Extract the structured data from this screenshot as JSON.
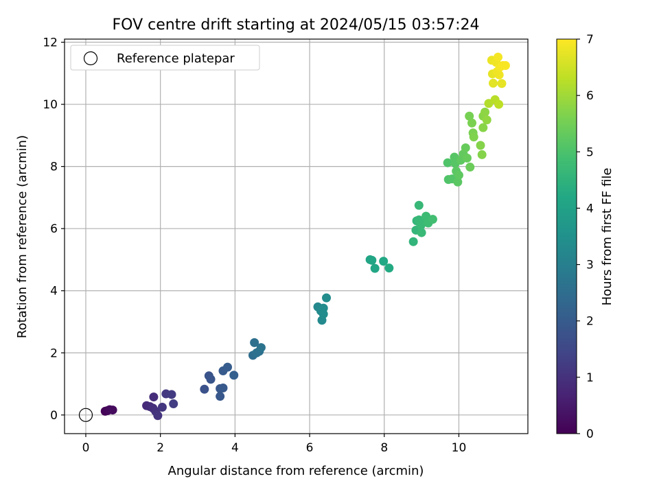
{
  "chart_data": {
    "type": "scatter",
    "title": "FOV centre drift starting at 2024/05/15 03:57:24",
    "xlabel": "Angular distance from reference (arcmin)",
    "ylabel": "Rotation from reference (arcmin)",
    "xlim": [
      -0.57,
      11.85
    ],
    "ylim": [
      -0.6,
      12.1
    ],
    "xticks": [
      0,
      2,
      4,
      6,
      8,
      10
    ],
    "yticks": [
      0,
      2,
      4,
      6,
      8,
      10,
      12
    ],
    "grid": true,
    "legend": {
      "placement": "upper-left",
      "entries": [
        "Reference platepar"
      ]
    },
    "reference_point": {
      "x": 0,
      "y": 0,
      "label": "Reference platepar"
    },
    "colorbar": {
      "label": "Hours from first FF file",
      "range": [
        0,
        7
      ],
      "ticks": [
        0,
        1,
        2,
        3,
        4,
        5,
        6,
        7
      ],
      "colormap": "viridis"
    },
    "points": [
      {
        "x": 0.52,
        "y": 0.12,
        "h": 0.05
      },
      {
        "x": 0.58,
        "y": 0.14,
        "h": 0.1
      },
      {
        "x": 0.64,
        "y": 0.17,
        "h": 0.15
      },
      {
        "x": 0.72,
        "y": 0.16,
        "h": 0.2
      },
      {
        "x": 1.63,
        "y": 0.3,
        "h": 0.85
      },
      {
        "x": 1.72,
        "y": 0.27,
        "h": 0.9
      },
      {
        "x": 1.8,
        "y": 0.22,
        "h": 0.95
      },
      {
        "x": 1.82,
        "y": 0.58,
        "h": 0.9
      },
      {
        "x": 1.87,
        "y": 0.12,
        "h": 1.0
      },
      {
        "x": 1.93,
        "y": -0.02,
        "h": 1.05
      },
      {
        "x": 2.05,
        "y": 0.25,
        "h": 1.1
      },
      {
        "x": 2.15,
        "y": 0.68,
        "h": 1.15
      },
      {
        "x": 2.3,
        "y": 0.66,
        "h": 1.2
      },
      {
        "x": 2.35,
        "y": 0.36,
        "h": 1.25
      },
      {
        "x": 3.18,
        "y": 0.83,
        "h": 1.75
      },
      {
        "x": 3.3,
        "y": 1.26,
        "h": 1.8
      },
      {
        "x": 3.35,
        "y": 1.15,
        "h": 1.85
      },
      {
        "x": 3.6,
        "y": 0.85,
        "h": 1.9
      },
      {
        "x": 3.6,
        "y": 0.6,
        "h": 1.9
      },
      {
        "x": 3.68,
        "y": 0.87,
        "h": 1.95
      },
      {
        "x": 3.68,
        "y": 1.42,
        "h": 2.0
      },
      {
        "x": 3.8,
        "y": 1.54,
        "h": 2.05
      },
      {
        "x": 3.97,
        "y": 1.28,
        "h": 2.1
      },
      {
        "x": 4.48,
        "y": 1.92,
        "h": 2.5
      },
      {
        "x": 4.52,
        "y": 2.33,
        "h": 2.55
      },
      {
        "x": 4.58,
        "y": 2.0,
        "h": 2.6
      },
      {
        "x": 4.65,
        "y": 2.05,
        "h": 2.6
      },
      {
        "x": 4.7,
        "y": 2.17,
        "h": 2.65
      },
      {
        "x": 6.22,
        "y": 3.48,
        "h": 3.25
      },
      {
        "x": 6.3,
        "y": 3.35,
        "h": 3.3
      },
      {
        "x": 6.33,
        "y": 3.05,
        "h": 3.3
      },
      {
        "x": 6.37,
        "y": 3.44,
        "h": 3.35
      },
      {
        "x": 6.37,
        "y": 3.25,
        "h": 3.35
      },
      {
        "x": 6.45,
        "y": 3.77,
        "h": 3.4
      },
      {
        "x": 7.62,
        "y": 5.0,
        "h": 4.1
      },
      {
        "x": 7.67,
        "y": 4.98,
        "h": 4.1
      },
      {
        "x": 7.75,
        "y": 4.72,
        "h": 4.15
      },
      {
        "x": 7.98,
        "y": 4.95,
        "h": 4.2
      },
      {
        "x": 8.13,
        "y": 4.73,
        "h": 4.25
      },
      {
        "x": 8.78,
        "y": 5.58,
        "h": 4.55
      },
      {
        "x": 8.85,
        "y": 5.95,
        "h": 4.6
      },
      {
        "x": 8.87,
        "y": 6.25,
        "h": 4.6
      },
      {
        "x": 8.93,
        "y": 6.75,
        "h": 4.65
      },
      {
        "x": 8.93,
        "y": 6.28,
        "h": 4.65
      },
      {
        "x": 8.98,
        "y": 6.1,
        "h": 4.7
      },
      {
        "x": 9.0,
        "y": 5.87,
        "h": 4.7
      },
      {
        "x": 9.05,
        "y": 6.2,
        "h": 4.7
      },
      {
        "x": 9.12,
        "y": 6.4,
        "h": 4.75
      },
      {
        "x": 9.18,
        "y": 6.18,
        "h": 4.8
      },
      {
        "x": 9.3,
        "y": 6.3,
        "h": 4.85
      },
      {
        "x": 9.7,
        "y": 8.12,
        "h": 5.05
      },
      {
        "x": 9.72,
        "y": 7.58,
        "h": 5.05
      },
      {
        "x": 9.82,
        "y": 7.6,
        "h": 5.1
      },
      {
        "x": 9.88,
        "y": 8.3,
        "h": 5.15
      },
      {
        "x": 9.9,
        "y": 8.1,
        "h": 5.15
      },
      {
        "x": 9.93,
        "y": 7.85,
        "h": 5.2
      },
      {
        "x": 9.97,
        "y": 7.5,
        "h": 5.2
      },
      {
        "x": 10.0,
        "y": 7.72,
        "h": 5.25
      },
      {
        "x": 10.05,
        "y": 8.2,
        "h": 5.25
      },
      {
        "x": 10.12,
        "y": 8.4,
        "h": 5.3
      },
      {
        "x": 10.18,
        "y": 8.6,
        "h": 5.35
      },
      {
        "x": 10.22,
        "y": 8.27,
        "h": 5.35
      },
      {
        "x": 10.3,
        "y": 7.98,
        "h": 5.4
      },
      {
        "x": 10.28,
        "y": 9.62,
        "h": 5.55
      },
      {
        "x": 10.35,
        "y": 9.4,
        "h": 5.6
      },
      {
        "x": 10.38,
        "y": 9.08,
        "h": 5.6
      },
      {
        "x": 10.4,
        "y": 8.95,
        "h": 5.65
      },
      {
        "x": 10.58,
        "y": 8.68,
        "h": 5.7
      },
      {
        "x": 10.62,
        "y": 8.38,
        "h": 5.7
      },
      {
        "x": 10.65,
        "y": 9.25,
        "h": 5.75
      },
      {
        "x": 10.65,
        "y": 9.62,
        "h": 5.75
      },
      {
        "x": 10.7,
        "y": 9.75,
        "h": 5.8
      },
      {
        "x": 10.75,
        "y": 9.5,
        "h": 5.85
      },
      {
        "x": 10.8,
        "y": 10.03,
        "h": 6.2
      },
      {
        "x": 10.97,
        "y": 10.15,
        "h": 6.25
      },
      {
        "x": 11.07,
        "y": 10.0,
        "h": 6.3
      },
      {
        "x": 10.88,
        "y": 11.42,
        "h": 6.8
      },
      {
        "x": 10.9,
        "y": 10.98,
        "h": 6.75
      },
      {
        "x": 10.92,
        "y": 10.68,
        "h": 6.7
      },
      {
        "x": 11.0,
        "y": 11.35,
        "h": 6.85
      },
      {
        "x": 11.02,
        "y": 11.05,
        "h": 6.85
      },
      {
        "x": 11.05,
        "y": 11.52,
        "h": 6.9
      },
      {
        "x": 11.08,
        "y": 10.95,
        "h": 6.85
      },
      {
        "x": 11.1,
        "y": 11.2,
        "h": 6.9
      },
      {
        "x": 11.15,
        "y": 10.67,
        "h": 6.75
      },
      {
        "x": 11.18,
        "y": 11.25,
        "h": 6.95
      },
      {
        "x": 11.25,
        "y": 11.25,
        "h": 6.95
      }
    ]
  }
}
